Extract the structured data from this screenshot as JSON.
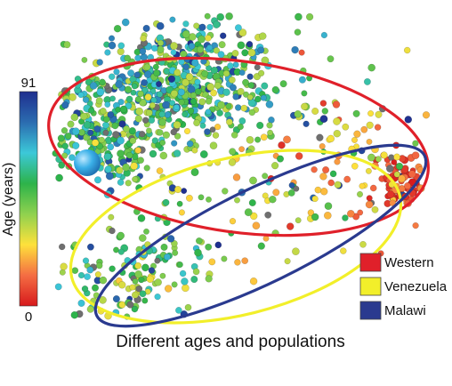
{
  "chart_data": {
    "type": "scatter",
    "title": "",
    "xlabel": "Different ages and populations",
    "colorbar": {
      "label": "Age (years)",
      "min": 0,
      "max": 91,
      "min_label": "0",
      "max_label": "91",
      "gradient": [
        "#d7191c",
        "#f46d43",
        "#fee13b",
        "#8fd14f",
        "#2db34a",
        "#3cc8d8",
        "#2b6cb0",
        "#1f2f8f"
      ]
    },
    "ellipses": [
      {
        "name": "Western",
        "color": "#e0202a"
      },
      {
        "name": "Venezuela",
        "color": "#f2ef2a"
      },
      {
        "name": "Malawi",
        "color": "#2a3a8f"
      }
    ],
    "legend": {
      "placement": "bottom-right",
      "entries": [
        {
          "name": "Western",
          "color": "#e0202a"
        },
        {
          "name": "Venezuela",
          "color": "#f2ef2a"
        },
        {
          "name": "Malawi",
          "color": "#2a3a8f"
        }
      ]
    },
    "grid": false
  }
}
